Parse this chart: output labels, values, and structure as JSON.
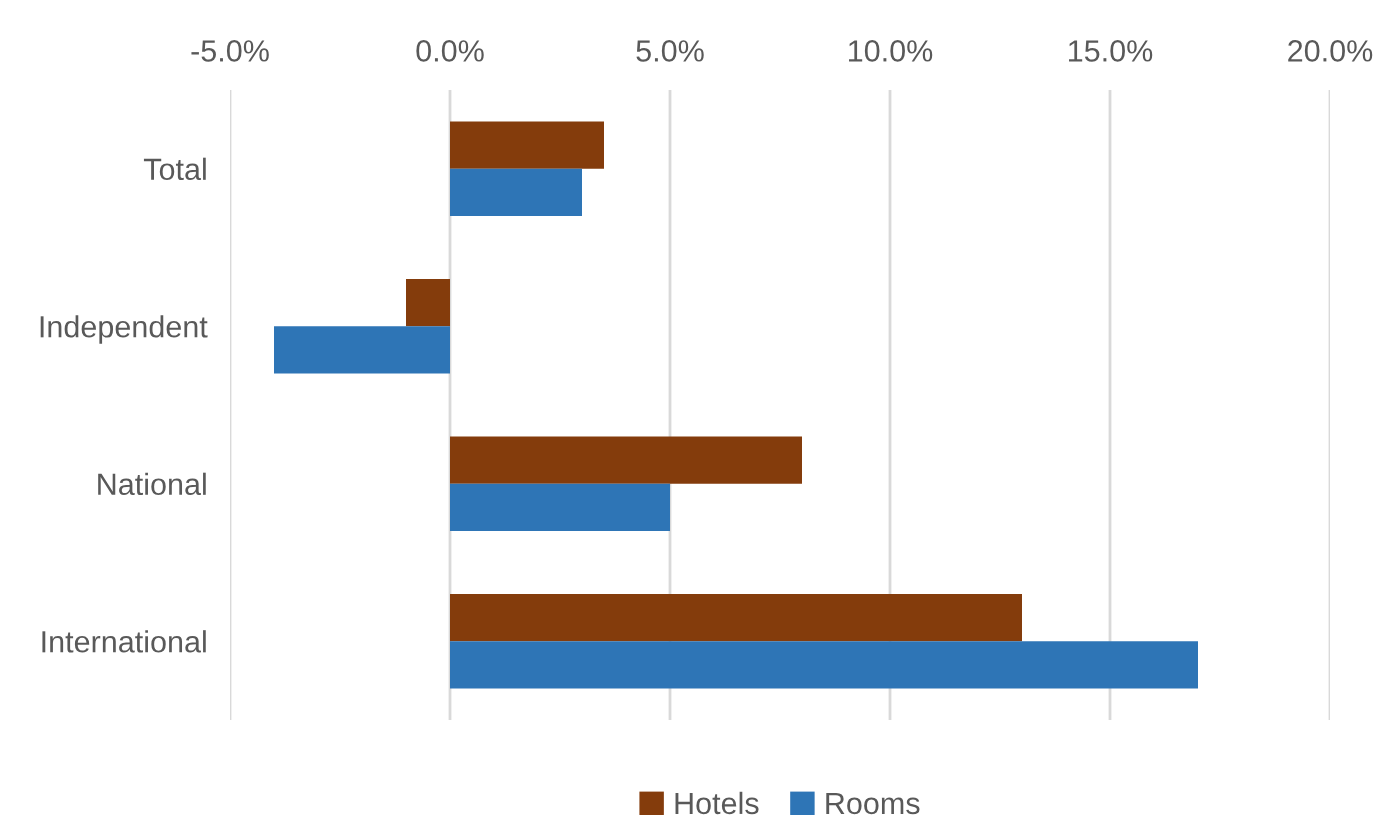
{
  "chart_data": {
    "type": "bar",
    "orientation": "horizontal",
    "categories": [
      "Total",
      "Independent",
      "National",
      "International"
    ],
    "series": [
      {
        "name": "Hotels",
        "color": "#843c0c",
        "values": [
          3.5,
          -1.0,
          8.0,
          13.0
        ]
      },
      {
        "name": "Rooms",
        "color": "#2e75b6",
        "values": [
          3.0,
          -4.0,
          5.0,
          17.0
        ]
      }
    ],
    "xlim": [
      -5,
      20
    ],
    "xticks": [
      {
        "value": -5,
        "label": "-5.0%"
      },
      {
        "value": 0,
        "label": "0.0%"
      },
      {
        "value": 5,
        "label": "5.0%"
      },
      {
        "value": 10,
        "label": "10.0%"
      },
      {
        "value": 15,
        "label": "15.0%"
      },
      {
        "value": 20,
        "label": "20.0%"
      }
    ],
    "grid": "x",
    "legend": "bottom"
  }
}
